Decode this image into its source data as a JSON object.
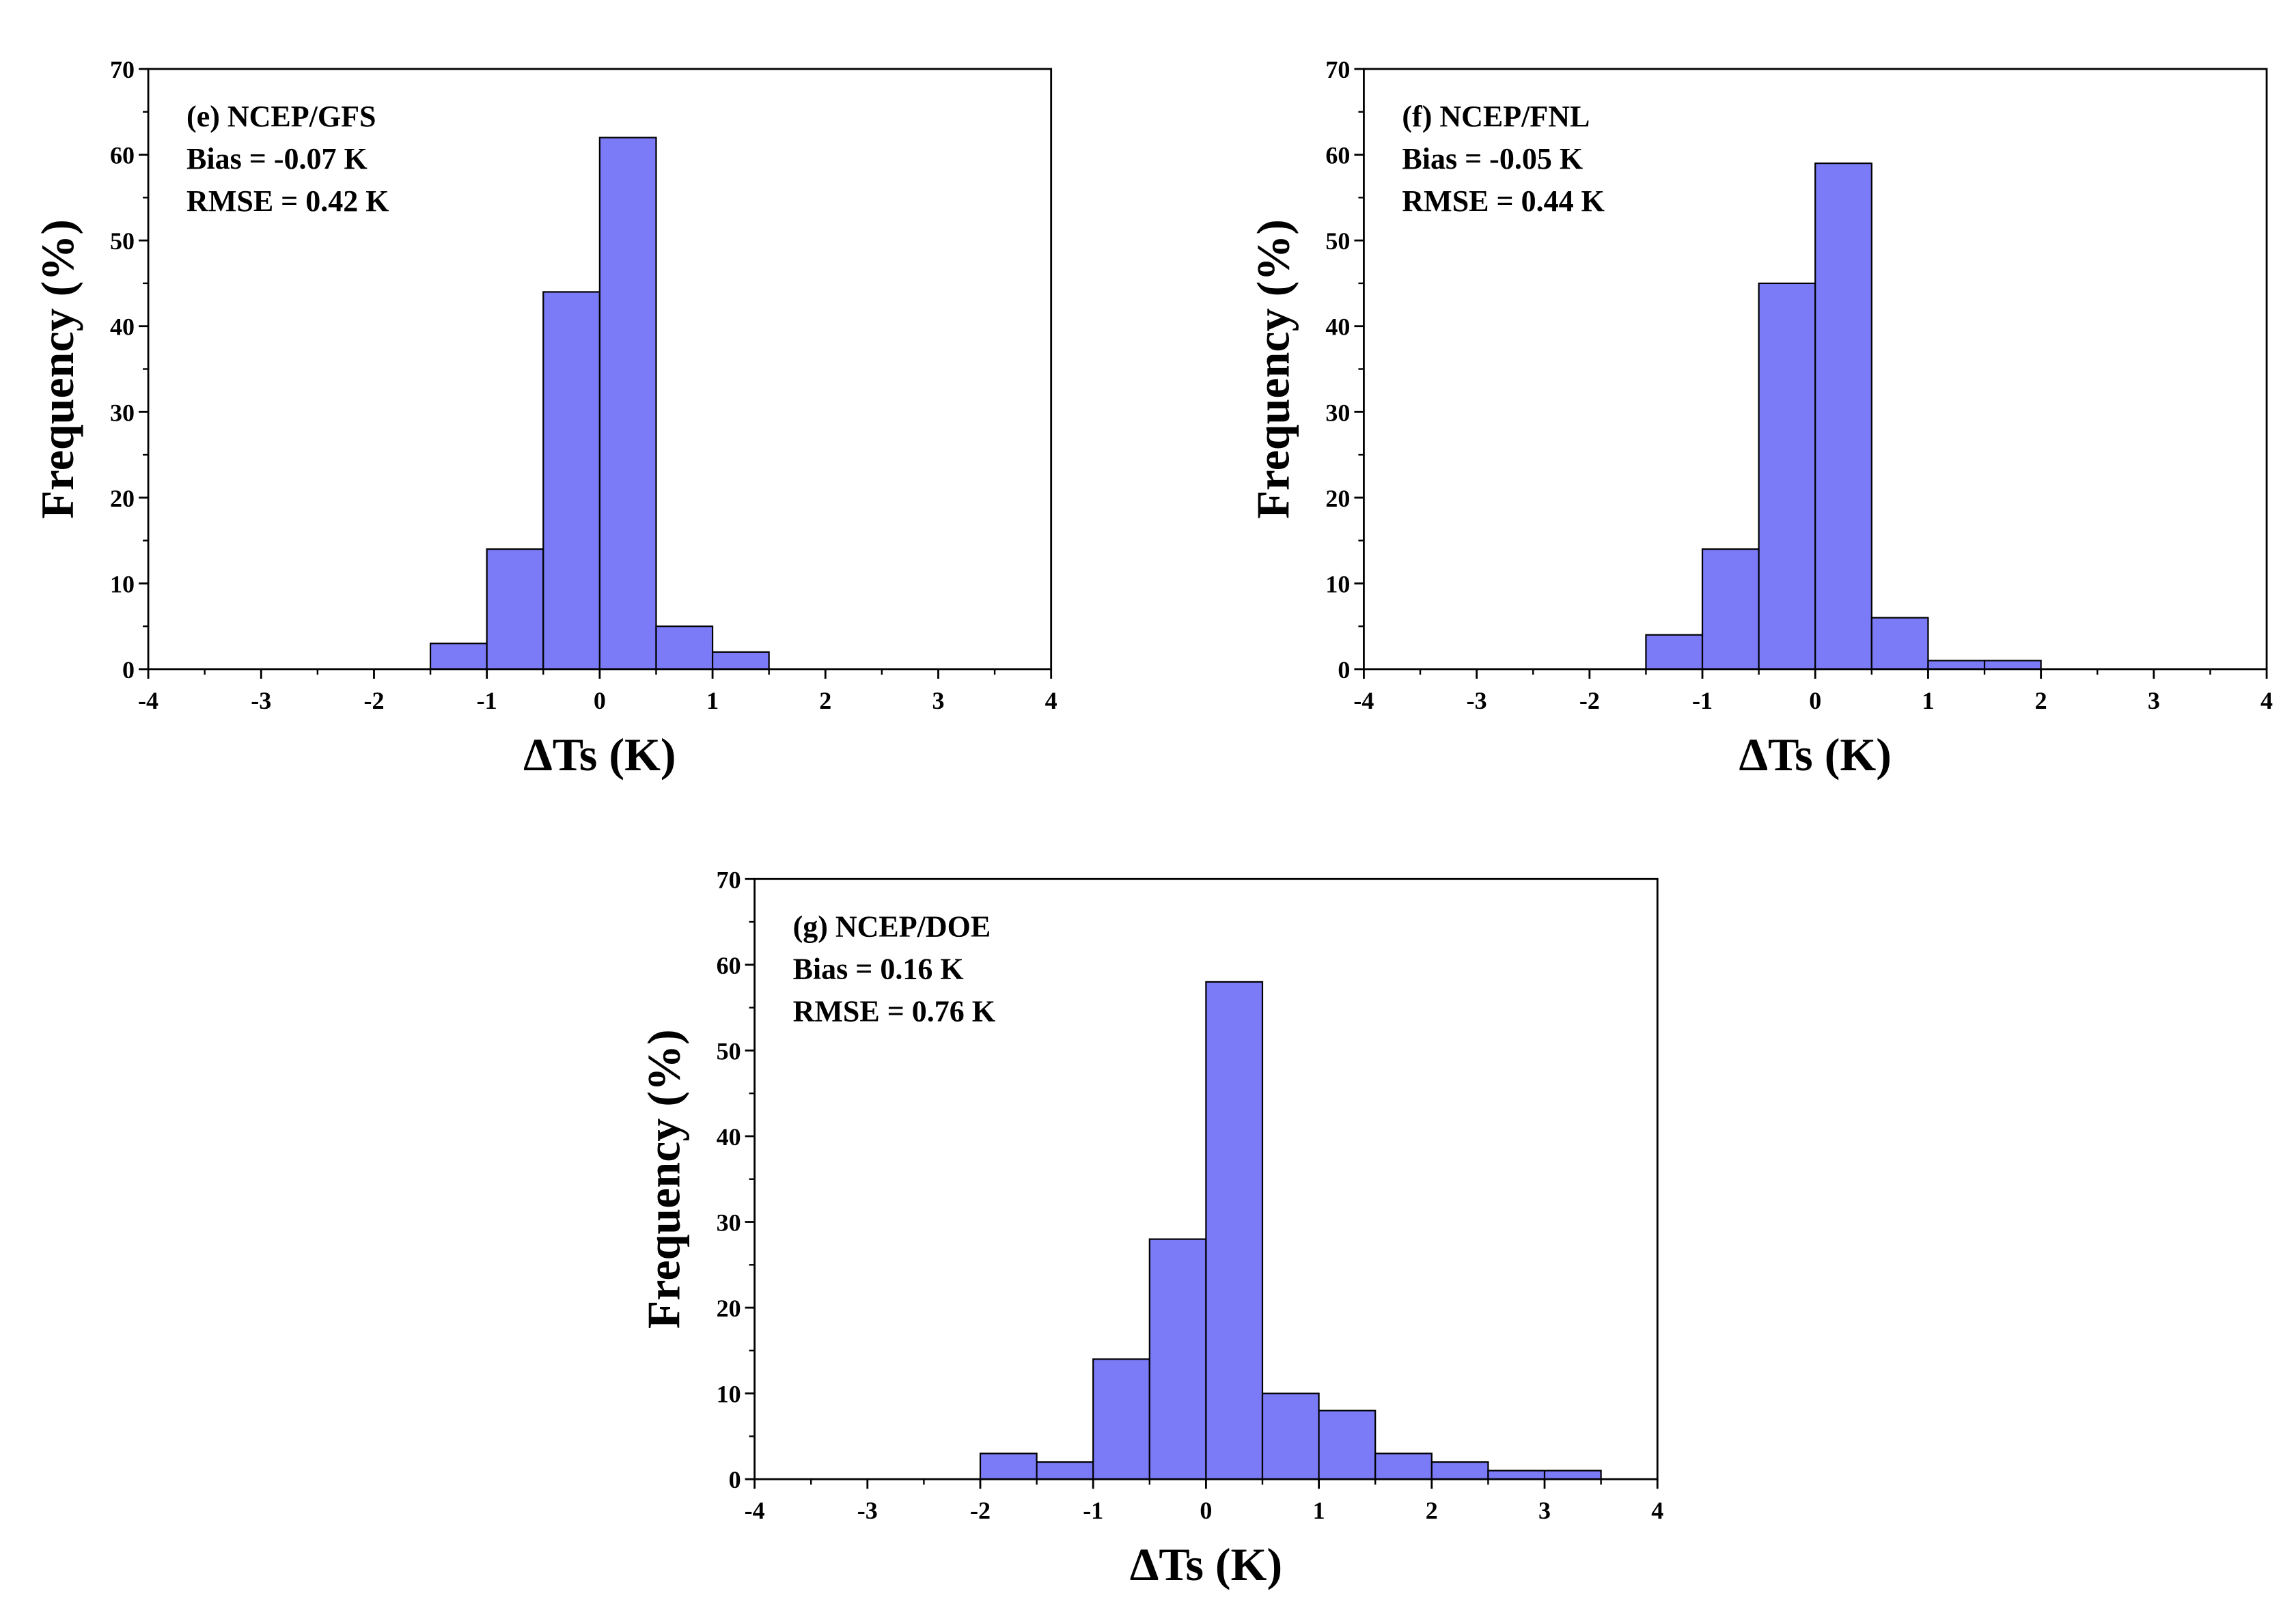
{
  "style": {
    "bar_fill": "#7b7bf7",
    "bar_edge": "#000000",
    "axis_color": "#000000"
  },
  "chart_data": [
    {
      "type": "bar",
      "panel": "e",
      "title": "(e) NCEP/GFS",
      "bias_text": "Bias = -0.07 K",
      "rmse_text": "RMSE = 0.42 K",
      "xlabel": "ΔTs (K)",
      "ylabel": "Frequency (%)",
      "xlim": [
        -4,
        4
      ],
      "ylim": [
        0,
        70
      ],
      "xticks": [
        -4,
        -3,
        -2,
        -1,
        0,
        1,
        2,
        3,
        4
      ],
      "yticks": [
        0,
        10,
        20,
        30,
        40,
        50,
        60,
        70
      ],
      "bin_width": 0.5,
      "bins": [
        {
          "start": -1.5,
          "value": 3
        },
        {
          "start": -1.0,
          "value": 14
        },
        {
          "start": -0.5,
          "value": 44
        },
        {
          "start": 0.0,
          "value": 62
        },
        {
          "start": 0.5,
          "value": 5
        },
        {
          "start": 1.0,
          "value": 2
        }
      ]
    },
    {
      "type": "bar",
      "panel": "f",
      "title": "(f) NCEP/FNL",
      "bias_text": "Bias = -0.05 K",
      "rmse_text": "RMSE = 0.44 K",
      "xlabel": "ΔTs (K)",
      "ylabel": "Frequency (%)",
      "xlim": [
        -4,
        4
      ],
      "ylim": [
        0,
        70
      ],
      "xticks": [
        -4,
        -3,
        -2,
        -1,
        0,
        1,
        2,
        3,
        4
      ],
      "yticks": [
        0,
        10,
        20,
        30,
        40,
        50,
        60,
        70
      ],
      "bin_width": 0.5,
      "bins": [
        {
          "start": -1.5,
          "value": 4
        },
        {
          "start": -1.0,
          "value": 14
        },
        {
          "start": -0.5,
          "value": 45
        },
        {
          "start": 0.0,
          "value": 59
        },
        {
          "start": 0.5,
          "value": 6
        },
        {
          "start": 1.0,
          "value": 1
        },
        {
          "start": 1.5,
          "value": 1
        }
      ]
    },
    {
      "type": "bar",
      "panel": "g",
      "title": "(g) NCEP/DOE",
      "bias_text": "Bias = 0.16 K",
      "rmse_text": "RMSE = 0.76 K",
      "xlabel": "ΔTs (K)",
      "ylabel": "Frequency (%)",
      "xlim": [
        -4,
        4
      ],
      "ylim": [
        0,
        70
      ],
      "xticks": [
        -4,
        -3,
        -2,
        -1,
        0,
        1,
        2,
        3,
        4
      ],
      "yticks": [
        0,
        10,
        20,
        30,
        40,
        50,
        60,
        70
      ],
      "bin_width": 0.5,
      "bins": [
        {
          "start": -2.0,
          "value": 3
        },
        {
          "start": -1.5,
          "value": 2
        },
        {
          "start": -1.0,
          "value": 14
        },
        {
          "start": -0.5,
          "value": 28
        },
        {
          "start": 0.0,
          "value": 58
        },
        {
          "start": 0.5,
          "value": 10
        },
        {
          "start": 1.0,
          "value": 8
        },
        {
          "start": 1.5,
          "value": 3
        },
        {
          "start": 2.0,
          "value": 2
        },
        {
          "start": 2.5,
          "value": 1
        },
        {
          "start": 3.0,
          "value": 1
        }
      ]
    }
  ]
}
